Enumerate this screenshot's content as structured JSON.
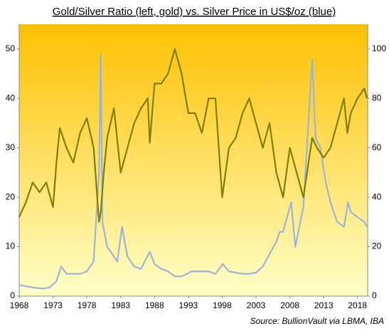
{
  "chart_data": {
    "type": "line",
    "title": "Gold/Silver Ratio (left, gold) vs. Silver Price in US$/oz (blue)",
    "source": "Source: BullionVault via LBMA, IBA",
    "xlim": [
      1968,
      2019.5
    ],
    "xticks": [
      1968,
      1973,
      1978,
      1983,
      1988,
      1993,
      1998,
      2003,
      2008,
      2013,
      2018
    ],
    "ylim": [
      0,
      55
    ],
    "yticks": [
      0,
      10,
      20,
      30,
      40,
      50
    ],
    "y2lim": [
      0,
      110
    ],
    "y2ticks": [
      0,
      20,
      40,
      60,
      80,
      100
    ],
    "grid": false,
    "background": [
      "#ffc000",
      "#ffffc8"
    ],
    "series": [
      {
        "name": "Gold/Silver Ratio",
        "color": "#7f7f00",
        "axis": "y",
        "x": [
          1968,
          1969,
          1970,
          1971,
          1972,
          1973,
          1973.5,
          1974,
          1975,
          1976,
          1977,
          1978,
          1979,
          1979.8,
          1980.05,
          1980.5,
          1981,
          1982,
          1983,
          1984,
          1985,
          1986,
          1987,
          1987.3,
          1988,
          1989,
          1990,
          1991,
          1992,
          1993,
          1994,
          1995,
          1996,
          1997,
          1998,
          1999,
          2000,
          2001,
          2002,
          2003,
          2004,
          2005,
          2006,
          2007,
          2008,
          2009,
          2010,
          2011.3,
          2012,
          2013,
          2014,
          2015,
          2016,
          2016.5,
          2017,
          2018,
          2019,
          2019.4
        ],
        "values": [
          16,
          19,
          23,
          21,
          23,
          18,
          27,
          34,
          30,
          27,
          33,
          36,
          30,
          15,
          17,
          25,
          32,
          38,
          25,
          30,
          35,
          38,
          40,
          31,
          43,
          43,
          45,
          50,
          45,
          37,
          37,
          33,
          40,
          40,
          20,
          30,
          32,
          37,
          40,
          35,
          30,
          35,
          25,
          20,
          30,
          25,
          20,
          32,
          30,
          28,
          30,
          35,
          40,
          33,
          37,
          40,
          42,
          40
        ]
      },
      {
        "name": "Silver Price in US$/oz",
        "color": "#9bb4dc",
        "axis": "y2",
        "x": [
          1968,
          1970,
          1971.5,
          1972.5,
          1973.5,
          1974.2,
          1975,
          1976,
          1977,
          1978,
          1979,
          1979.8,
          1980.05,
          1980.3,
          1981,
          1982.5,
          1983.2,
          1984,
          1985,
          1986,
          1987.3,
          1988,
          1989,
          1990,
          1991,
          1992,
          1993.5,
          1994,
          1996,
          1997,
          1998.1,
          1999,
          2001,
          2002,
          2003,
          2004,
          2006,
          2006.5,
          2007,
          2008.2,
          2008.8,
          2010,
          2011.3,
          2011.8,
          2012.5,
          2013.3,
          2014,
          2015,
          2016,
          2016.6,
          2017,
          2018,
          2019,
          2019.4
        ],
        "values": [
          4.5,
          3.5,
          3,
          3.5,
          6,
          12,
          9,
          9,
          9,
          10,
          14,
          50,
          98,
          30,
          20,
          14,
          28,
          16,
          12,
          11,
          18,
          13,
          11,
          10,
          8,
          8,
          10,
          10,
          10,
          9,
          13,
          10,
          9,
          9,
          9.5,
          12,
          22,
          26,
          26,
          38,
          20,
          36,
          96,
          64,
          60,
          46,
          38,
          30,
          28,
          38,
          34,
          32,
          30,
          28
        ]
      }
    ]
  }
}
